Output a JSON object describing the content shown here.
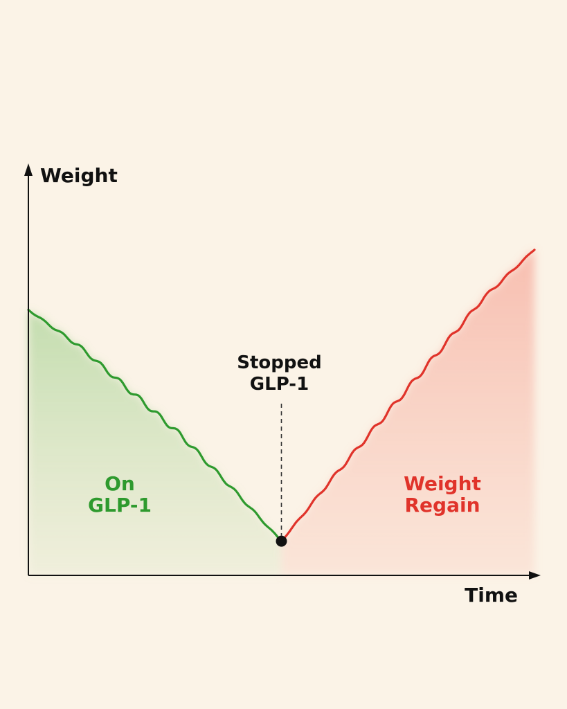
{
  "chart_data": {
    "type": "line",
    "title": "",
    "xlabel": "Time",
    "ylabel": "Weight",
    "xlim": [
      0,
      10
    ],
    "ylim": [
      0,
      10
    ],
    "grid": false,
    "legend": "none",
    "series": [
      {
        "name": "On GLP-1",
        "color": "#2e9a2e",
        "x": [
          0,
          1,
          2,
          3,
          4,
          5
        ],
        "y": [
          6.6,
          5.7,
          4.6,
          3.5,
          2.2,
          0.85
        ]
      },
      {
        "name": "Weight Regain",
        "color": "#e0332a",
        "x": [
          5,
          6,
          7,
          8,
          9,
          10
        ],
        "y": [
          0.85,
          2.4,
          3.9,
          5.4,
          6.9,
          8.1
        ]
      }
    ],
    "annotations": [
      {
        "text": "Stopped GLP-1",
        "lines": [
          "Stopped",
          "GLP-1"
        ],
        "x": 5,
        "y": 0.85,
        "marker": "dot",
        "guide": "dashed-vertical"
      }
    ],
    "region_labels": [
      {
        "lines": [
          "On",
          "GLP-1"
        ],
        "color": "#2e9a2e"
      },
      {
        "lines": [
          "Weight",
          "Regain"
        ],
        "color": "#e0332a"
      }
    ]
  }
}
